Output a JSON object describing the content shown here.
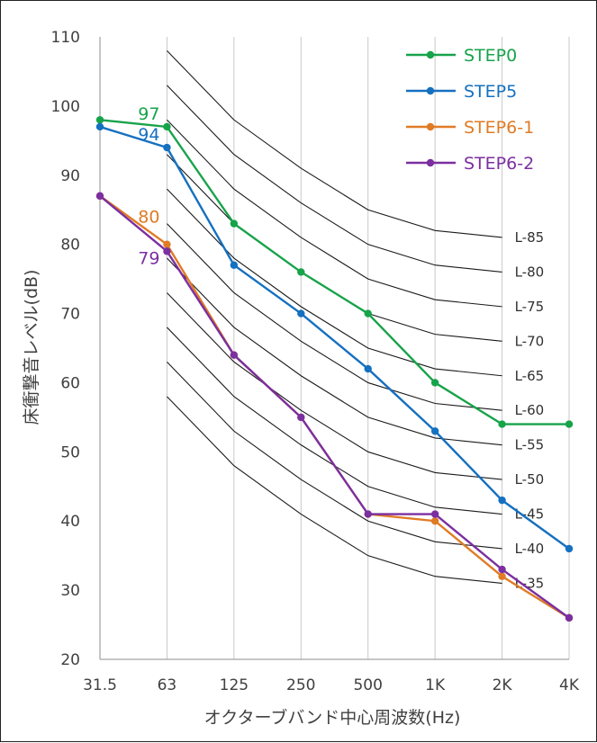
{
  "chart_data": {
    "type": "line",
    "xlabel": "オクターブバンド中心周波数(Hz)",
    "ylabel": "床衝撃音レベル(dB)",
    "categories": [
      "31.5",
      "63",
      "125",
      "250",
      "500",
      "1K",
      "2K",
      "4K"
    ],
    "ylim": [
      20,
      110
    ],
    "yticks": [
      20,
      30,
      40,
      50,
      60,
      70,
      80,
      90,
      100,
      110
    ],
    "grid": "vertical",
    "legend_position": "top-right",
    "series": [
      {
        "name": "STEP0",
        "color": "#17a34a",
        "values": [
          98,
          97,
          83,
          76,
          70,
          60,
          54,
          54
        ]
      },
      {
        "name": "STEP5",
        "color": "#1570c0",
        "values": [
          97,
          94,
          77,
          70,
          62,
          53,
          43,
          36
        ]
      },
      {
        "name": "STEP6-1",
        "color": "#e07b25",
        "values": [
          87,
          80,
          64,
          55,
          41,
          40,
          32,
          26
        ]
      },
      {
        "name": "STEP6-2",
        "color": "#7b2fa0",
        "values": [
          87,
          79,
          64,
          55,
          41,
          41,
          33,
          26
        ]
      }
    ],
    "reference_curves": [
      {
        "name": "L-85",
        "color": "#303030",
        "values": [
          null,
          108,
          98,
          91,
          85,
          82,
          81
        ]
      },
      {
        "name": "L-80",
        "color": "#303030",
        "values": [
          null,
          103,
          93,
          86,
          80,
          77,
          76
        ]
      },
      {
        "name": "L-75",
        "color": "#303030",
        "values": [
          null,
          98,
          88,
          81,
          75,
          72,
          71
        ]
      },
      {
        "name": "L-70",
        "color": "#303030",
        "values": [
          null,
          93,
          83,
          76,
          70,
          67,
          66
        ]
      },
      {
        "name": "L-65",
        "color": "#e00000",
        "values": [
          null,
          88,
          78,
          71,
          65,
          62,
          61
        ]
      },
      {
        "name": "L-60",
        "color": "#303030",
        "values": [
          null,
          83,
          73,
          66,
          60,
          57,
          56
        ]
      },
      {
        "name": "L-55",
        "color": "#303030",
        "values": [
          null,
          78,
          68,
          61,
          55,
          52,
          51
        ]
      },
      {
        "name": "L-50",
        "color": "#303030",
        "values": [
          null,
          73,
          63,
          56,
          50,
          47,
          46
        ]
      },
      {
        "name": "L-45",
        "color": "#303030",
        "values": [
          null,
          68,
          58,
          51,
          45,
          42,
          41
        ]
      },
      {
        "name": "L-40",
        "color": "#303030",
        "values": [
          null,
          63,
          53,
          46,
          40,
          37,
          36
        ]
      },
      {
        "name": "L-35",
        "color": "#303030",
        "values": [
          null,
          58,
          48,
          41,
          35,
          32,
          31
        ]
      }
    ],
    "annotations": [
      {
        "text": "97",
        "series": "STEP0",
        "category": "63",
        "color": "#17a34a"
      },
      {
        "text": "94",
        "series": "STEP5",
        "category": "63",
        "color": "#1570c0"
      },
      {
        "text": "80",
        "series": "STEP6-1",
        "category": "63",
        "color": "#e07b25"
      },
      {
        "text": "79",
        "series": "STEP6-2",
        "category": "63",
        "color": "#7b2fa0"
      }
    ]
  }
}
